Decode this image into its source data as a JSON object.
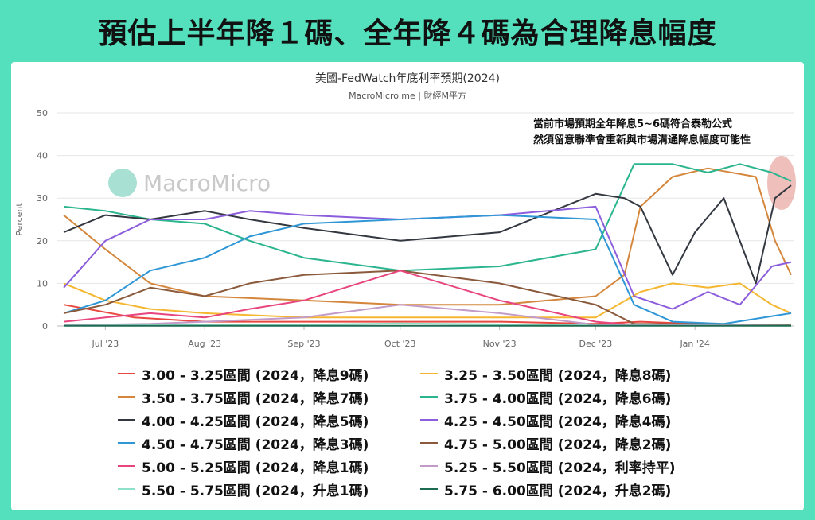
{
  "headline": "預估上半年降１碼、全年降４碼為合理降息幅度",
  "watermark": "MacroMicro",
  "annotation": [
    "當前市場預期全年降息5~6碼符合泰勒公式",
    "然須留意聯準會重新與市場溝通降息幅度可能性"
  ],
  "chart_data": {
    "type": "line",
    "title": "美國-FedWatch年底利率預期(2024)",
    "subtitle": "MacroMicro.me | 財經M平方",
    "ylabel": "Percent",
    "ylim": [
      0,
      50
    ],
    "yticks": [
      "0",
      "10",
      "20",
      "30",
      "40",
      "50"
    ],
    "x_start": "2023-06-16",
    "x_end": "2024-02-01",
    "xticks": [
      {
        "label": "Jul '23",
        "date": "2023-07-01"
      },
      {
        "label": "Aug '23",
        "date": "2023-08-01"
      },
      {
        "label": "Sep '23",
        "date": "2023-09-01"
      },
      {
        "label": "Oct '23",
        "date": "2023-10-01"
      },
      {
        "label": "Nov '23",
        "date": "2023-11-01"
      },
      {
        "label": "Dec '23",
        "date": "2023-12-01"
      },
      {
        "label": "Jan '24",
        "date": "2024-01-01"
      }
    ],
    "grid": true,
    "legend_position": "bottom",
    "highlight_end": true,
    "series": [
      {
        "name": "3.00 - 3.25區間 (2024，降息9碼)",
        "color": "#e8483f",
        "points": [
          [
            "2023-06-18",
            5
          ],
          [
            "2023-07-10",
            2
          ],
          [
            "2023-08-01",
            1
          ],
          [
            "2023-09-01",
            1
          ],
          [
            "2023-10-01",
            1
          ],
          [
            "2023-11-01",
            1
          ],
          [
            "2023-12-01",
            0.5
          ],
          [
            "2023-12-15",
            1
          ],
          [
            "2024-01-01",
            0.5
          ],
          [
            "2024-01-20",
            0.3
          ],
          [
            "2024-01-31",
            0.2
          ]
        ]
      },
      {
        "name": "3.25 - 3.50區間 (2024，降息8碼)",
        "color": "#f5b731",
        "points": [
          [
            "2023-06-18",
            10
          ],
          [
            "2023-07-01",
            6
          ],
          [
            "2023-07-15",
            4
          ],
          [
            "2023-08-01",
            3
          ],
          [
            "2023-09-01",
            2
          ],
          [
            "2023-10-01",
            2
          ],
          [
            "2023-11-01",
            2
          ],
          [
            "2023-12-01",
            2
          ],
          [
            "2023-12-15",
            8
          ],
          [
            "2023-12-25",
            10
          ],
          [
            "2024-01-05",
            9
          ],
          [
            "2024-01-15",
            10
          ],
          [
            "2024-01-25",
            5
          ],
          [
            "2024-01-31",
            3
          ]
        ]
      },
      {
        "name": "3.50 - 3.75區間 (2024，降息7碼)",
        "color": "#d4873c",
        "points": [
          [
            "2023-06-18",
            26
          ],
          [
            "2023-07-01",
            18
          ],
          [
            "2023-07-15",
            10
          ],
          [
            "2023-08-01",
            7
          ],
          [
            "2023-09-01",
            6
          ],
          [
            "2023-10-01",
            5
          ],
          [
            "2023-11-01",
            5
          ],
          [
            "2023-12-01",
            7
          ],
          [
            "2023-12-10",
            12
          ],
          [
            "2023-12-15",
            28
          ],
          [
            "2023-12-25",
            35
          ],
          [
            "2024-01-05",
            37
          ],
          [
            "2024-01-20",
            35
          ],
          [
            "2024-01-26",
            20
          ],
          [
            "2024-01-31",
            12
          ]
        ]
      },
      {
        "name": "3.75 - 4.00區間 (2024，降息6碼)",
        "color": "#2bb58e",
        "points": [
          [
            "2023-06-18",
            28
          ],
          [
            "2023-07-01",
            27
          ],
          [
            "2023-07-15",
            25
          ],
          [
            "2023-08-01",
            24
          ],
          [
            "2023-08-15",
            20
          ],
          [
            "2023-09-01",
            16
          ],
          [
            "2023-10-01",
            13
          ],
          [
            "2023-11-01",
            14
          ],
          [
            "2023-12-01",
            18
          ],
          [
            "2023-12-13",
            38
          ],
          [
            "2023-12-25",
            38
          ],
          [
            "2024-01-05",
            36
          ],
          [
            "2024-01-15",
            38
          ],
          [
            "2024-01-25",
            36
          ],
          [
            "2024-01-31",
            34
          ]
        ]
      },
      {
        "name": "4.00 - 4.25區間 (2024，降息5碼)",
        "color": "#333840",
        "points": [
          [
            "2023-06-18",
            22
          ],
          [
            "2023-07-01",
            26
          ],
          [
            "2023-07-15",
            25
          ],
          [
            "2023-08-01",
            27
          ],
          [
            "2023-08-15",
            25
          ],
          [
            "2023-09-01",
            23
          ],
          [
            "2023-10-01",
            20
          ],
          [
            "2023-11-01",
            22
          ],
          [
            "2023-12-01",
            31
          ],
          [
            "2023-12-10",
            30
          ],
          [
            "2023-12-15",
            28
          ],
          [
            "2023-12-25",
            12
          ],
          [
            "2024-01-01",
            22
          ],
          [
            "2024-01-10",
            30
          ],
          [
            "2024-01-20",
            10
          ],
          [
            "2024-01-26",
            30
          ],
          [
            "2024-01-31",
            33
          ]
        ]
      },
      {
        "name": "4.25 - 4.50區間 (2024，降息4碼)",
        "color": "#8c5ddc",
        "points": [
          [
            "2023-06-18",
            9
          ],
          [
            "2023-07-01",
            20
          ],
          [
            "2023-07-15",
            25
          ],
          [
            "2023-08-01",
            25
          ],
          [
            "2023-08-15",
            27
          ],
          [
            "2023-09-01",
            26
          ],
          [
            "2023-10-01",
            25
          ],
          [
            "2023-11-01",
            26
          ],
          [
            "2023-12-01",
            28
          ],
          [
            "2023-12-13",
            7
          ],
          [
            "2023-12-25",
            4
          ],
          [
            "2024-01-05",
            8
          ],
          [
            "2024-01-15",
            5
          ],
          [
            "2024-01-25",
            14
          ],
          [
            "2024-01-31",
            15
          ]
        ]
      },
      {
        "name": "4.50 - 4.75區間 (2024，降息3碼)",
        "color": "#2f97d6",
        "points": [
          [
            "2023-06-18",
            3
          ],
          [
            "2023-07-01",
            6
          ],
          [
            "2023-07-15",
            13
          ],
          [
            "2023-08-01",
            16
          ],
          [
            "2023-08-15",
            21
          ],
          [
            "2023-09-01",
            24
          ],
          [
            "2023-10-01",
            25
          ],
          [
            "2023-11-01",
            26
          ],
          [
            "2023-12-01",
            25
          ],
          [
            "2023-12-13",
            5
          ],
          [
            "2023-12-25",
            1
          ],
          [
            "2024-01-10",
            0.5
          ],
          [
            "2024-01-31",
            3
          ]
        ]
      },
      {
        "name": "4.75 - 5.00區間 (2024，降息2碼)",
        "color": "#8b5a3c",
        "points": [
          [
            "2023-06-18",
            3
          ],
          [
            "2023-07-01",
            5
          ],
          [
            "2023-07-15",
            9
          ],
          [
            "2023-08-01",
            7
          ],
          [
            "2023-08-15",
            10
          ],
          [
            "2023-09-01",
            12
          ],
          [
            "2023-10-01",
            13
          ],
          [
            "2023-11-01",
            10
          ],
          [
            "2023-12-01",
            5
          ],
          [
            "2023-12-13",
            0.5
          ],
          [
            "2024-01-31",
            0.3
          ]
        ]
      },
      {
        "name": "5.00 - 5.25區間 (2024，降息1碼)",
        "color": "#e8457f",
        "points": [
          [
            "2023-06-18",
            1
          ],
          [
            "2023-07-01",
            2
          ],
          [
            "2023-07-15",
            3
          ],
          [
            "2023-08-01",
            2
          ],
          [
            "2023-08-15",
            4
          ],
          [
            "2023-09-01",
            6
          ],
          [
            "2023-10-01",
            13
          ],
          [
            "2023-11-01",
            6
          ],
          [
            "2023-12-01",
            1
          ],
          [
            "2023-12-13",
            0.2
          ],
          [
            "2024-01-31",
            0.1
          ]
        ]
      },
      {
        "name": "5.25 - 5.50區間 (2024，利率持平)",
        "color": "#c39bc9",
        "points": [
          [
            "2023-06-18",
            0.2
          ],
          [
            "2023-07-15",
            0.5
          ],
          [
            "2023-08-01",
            1
          ],
          [
            "2023-09-01",
            2
          ],
          [
            "2023-10-01",
            5
          ],
          [
            "2023-11-01",
            3
          ],
          [
            "2023-12-01",
            0.3
          ],
          [
            "2024-01-31",
            0.1
          ]
        ]
      },
      {
        "name": "5.50 - 5.75區間 (2024，升息1碼)",
        "color": "#8fe0c8",
        "points": [
          [
            "2023-06-18",
            0.1
          ],
          [
            "2023-09-01",
            0.3
          ],
          [
            "2023-10-01",
            0.6
          ],
          [
            "2023-11-01",
            0.4
          ],
          [
            "2023-12-01",
            0.1
          ],
          [
            "2024-01-31",
            0.1
          ]
        ]
      },
      {
        "name": "5.75 - 6.00區間 (2024，升息2碼)",
        "color": "#1d6b52",
        "points": [
          [
            "2023-06-18",
            0.05
          ],
          [
            "2024-01-31",
            0.05
          ]
        ]
      }
    ]
  }
}
